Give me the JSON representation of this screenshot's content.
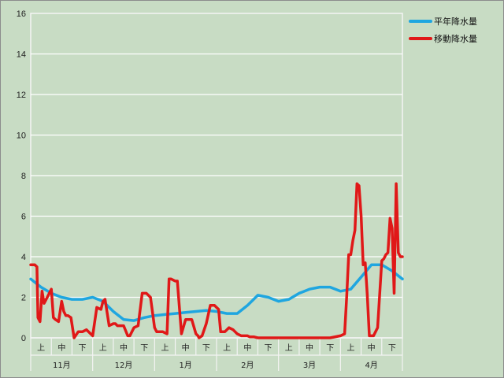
{
  "chart_data": {
    "type": "line",
    "title": "",
    "xlabel": "",
    "ylabel": "",
    "ylim": [
      0,
      16
    ],
    "y_ticks": [
      "0",
      "2",
      "4",
      "6",
      "8",
      "10",
      "12",
      "14",
      "16"
    ],
    "grid": "horizontal",
    "legend_position": "top-right",
    "months": [
      "11月",
      "12月",
      "1月",
      "2月",
      "3月",
      "4月"
    ],
    "decades": [
      "上",
      "中",
      "下"
    ],
    "x": [
      0,
      0.1,
      0.2,
      0.3,
      0.4,
      0.5,
      0.6,
      0.7,
      0.8,
      0.9,
      1.0,
      1.2,
      1.4,
      1.6,
      1.8,
      2.0,
      2.2,
      2.4,
      2.6,
      2.8,
      3.0,
      3.2,
      3.4,
      3.6,
      3.8,
      4.0,
      4.2,
      4.4,
      4.6,
      4.8,
      5.0,
      5.2,
      5.4,
      5.6,
      5.8,
      6.0,
      6.2,
      6.4,
      6.6,
      6.8,
      7.0,
      7.2,
      7.4,
      7.6,
      7.8,
      8.0,
      8.2,
      8.4,
      8.6,
      8.8,
      9.0,
      9.2,
      9.4,
      9.6,
      9.8,
      10.0,
      10.2,
      10.4,
      10.6,
      10.8,
      11.0,
      11.2,
      11.4,
      11.6,
      11.8,
      12.0,
      12.2,
      12.4,
      12.6,
      12.8,
      13.0,
      13.2,
      13.4,
      13.6,
      13.8,
      14.0,
      14.2,
      14.4,
      14.6,
      14.8,
      15.0,
      15.2,
      15.4,
      15.6,
      15.8,
      16.0,
      16.2,
      16.4,
      16.6,
      16.8,
      17.0,
      17.2,
      17.4,
      17.6,
      17.8,
      18.0
    ],
    "series": [
      {
        "name": "平年降水量",
        "color": "#1fa6e0",
        "x": [
          0,
          0.5,
          1.0,
          1.5,
          2.0,
          2.5,
          3.0,
          3.5,
          4.0,
          4.5,
          5.0,
          5.5,
          6.0,
          6.5,
          7.0,
          7.5,
          8.0,
          8.5,
          9.0,
          9.5,
          10.0,
          10.5,
          11.0,
          11.5,
          12.0,
          12.5,
          13.0,
          13.5,
          14.0,
          14.5,
          15.0,
          15.5,
          16.0,
          16.5,
          17.0,
          17.5,
          18.0
        ],
        "values": [
          2.9,
          2.5,
          2.2,
          2.0,
          1.9,
          1.9,
          2.0,
          1.8,
          1.3,
          0.9,
          0.85,
          1.0,
          1.1,
          1.15,
          1.2,
          1.25,
          1.3,
          1.35,
          1.3,
          1.2,
          1.2,
          1.6,
          2.1,
          2.0,
          1.8,
          1.9,
          2.2,
          2.4,
          2.5,
          2.5,
          2.3,
          2.4,
          3.0,
          3.6,
          3.6,
          3.3,
          2.9
        ]
      },
      {
        "name": "移動降水量",
        "color": "#e01818",
        "x": [
          0,
          0.2,
          0.3,
          0.35,
          0.45,
          0.55,
          0.65,
          0.8,
          1.0,
          1.1,
          1.2,
          1.35,
          1.5,
          1.6,
          1.7,
          1.8,
          1.95,
          2.1,
          2.3,
          2.4,
          2.5,
          2.7,
          3.0,
          3.2,
          3.4,
          3.5,
          3.6,
          3.8,
          4.0,
          4.1,
          4.2,
          4.35,
          4.5,
          4.7,
          4.8,
          5.0,
          5.2,
          5.4,
          5.6,
          5.8,
          6.0,
          6.1,
          6.2,
          6.4,
          6.6,
          6.7,
          6.8,
          7.0,
          7.1,
          7.3,
          7.5,
          7.7,
          7.8,
          8.0,
          8.1,
          8.15,
          8.3,
          8.5,
          8.7,
          8.9,
          9.0,
          9.1,
          9.2,
          9.4,
          9.6,
          9.8,
          9.9,
          10.0,
          10.2,
          10.4,
          10.5,
          10.6,
          10.8,
          11.0,
          11.2,
          11.4,
          11.6,
          12.0,
          12.5,
          13.0,
          13.5,
          14.0,
          14.5,
          15.0,
          15.2,
          15.3,
          15.4,
          15.5,
          15.6,
          15.7,
          15.8,
          15.9,
          16.0,
          16.1,
          16.2,
          16.3,
          16.4,
          16.5,
          16.6,
          16.8,
          17.0,
          17.1,
          17.2,
          17.3,
          17.4,
          17.5,
          17.6,
          17.7,
          17.8,
          17.9,
          18.0
        ],
        "values": [
          3.6,
          3.6,
          3.5,
          1.0,
          0.8,
          2.3,
          1.7,
          2.0,
          2.4,
          1.0,
          0.9,
          0.8,
          1.8,
          1.3,
          1.1,
          1.1,
          1.0,
          0.0,
          0.3,
          0.3,
          0.3,
          0.4,
          0.1,
          1.5,
          1.4,
          1.8,
          1.9,
          0.6,
          0.7,
          0.7,
          0.6,
          0.6,
          0.6,
          0.1,
          0.1,
          0.5,
          0.6,
          2.2,
          2.2,
          2.0,
          0.5,
          0.3,
          0.3,
          0.3,
          0.2,
          2.9,
          2.9,
          2.8,
          2.8,
          0.2,
          0.9,
          0.9,
          0.9,
          0.2,
          0.1,
          0.0,
          0.1,
          0.7,
          1.6,
          1.6,
          1.5,
          1.4,
          0.3,
          0.3,
          0.5,
          0.4,
          0.3,
          0.2,
          0.1,
          0.1,
          0.1,
          0.05,
          0.05,
          0.0,
          0.0,
          0.0,
          0.0,
          0.0,
          0.0,
          0.0,
          0.0,
          0.0,
          0.0,
          0.1,
          0.2,
          2.0,
          4.1,
          4.1,
          4.8,
          5.3,
          7.6,
          7.5,
          6.0,
          3.6,
          3.7,
          2.1,
          0.1,
          0.1,
          0.1,
          0.5,
          3.8,
          3.9,
          4.1,
          4.2,
          5.9,
          5.4,
          2.2,
          7.6,
          4.2,
          4.0,
          4.0
        ]
      }
    ]
  }
}
